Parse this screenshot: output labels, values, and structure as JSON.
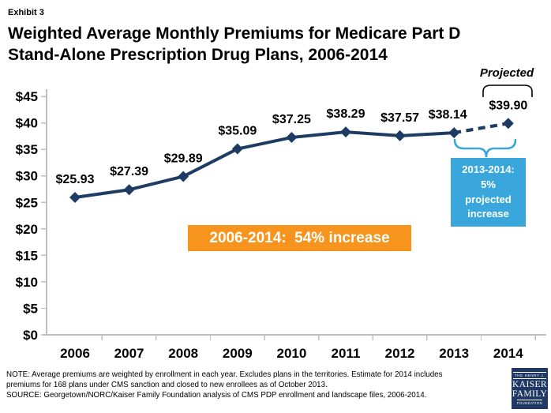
{
  "exhibit_label": "Exhibit 3",
  "title_line1": "Weighted Average Monthly Premiums for Medicare Part D",
  "title_line2": "Stand-Alone Prescription Drug Plans, 2006-2014",
  "projected_label": "Projected",
  "annotations": {
    "increase_box": "2006-2014:  54% increase",
    "projected_increase_box": "2013-2014:\n5%\nprojected\nincrease"
  },
  "notes": {
    "line1": "NOTE: Average premiums are weighted by enrollment in each year.  Excludes plans in the territories.  Estimate for 2014 includes",
    "line2": "premiums for 168 plans under CMS sanction and closed to new enrollees as of October 2013.",
    "line3": "SOURCE: Georgetown/NORC/Kaiser Family Foundation analysis of CMS PDP enrollment and landscape files, 2006-2014."
  },
  "logo": {
    "line1": "THE HENRY J.",
    "line2": "KAISER",
    "line3": "FAMILY",
    "line4": "FOUNDATION"
  },
  "colors": {
    "line": "#1E3C63",
    "orange": "#F7941E",
    "blue": "#3AA7DC",
    "axis": "#BFBFBF",
    "logo_bg": "#1F3864"
  },
  "chart_data": {
    "type": "line",
    "title": "Weighted Average Monthly Premiums for Medicare Part D Stand-Alone Prescription Drug Plans, 2006-2014",
    "categories": [
      "2006",
      "2007",
      "2008",
      "2009",
      "2010",
      "2011",
      "2012",
      "2013",
      "2014"
    ],
    "series": [
      {
        "name": "Weighted average monthly premium",
        "values": [
          25.93,
          27.39,
          29.89,
          35.09,
          37.25,
          38.29,
          37.57,
          38.14,
          39.9
        ],
        "projected_from_index": 7
      }
    ],
    "point_labels": [
      "$25.93",
      "$27.39",
      "$29.89",
      "$35.09",
      "$37.25",
      "$38.29",
      "$37.57",
      "$38.14",
      "$39.90"
    ],
    "xlabel": "",
    "ylabel": "",
    "ylim": [
      0,
      45
    ],
    "ytick_step": 5,
    "ytick_prefix": "$",
    "grid": false,
    "legend": "none",
    "callouts": [
      "2006-2014:  54% increase",
      "2013-2014: 5% projected increase",
      "Projected"
    ]
  }
}
